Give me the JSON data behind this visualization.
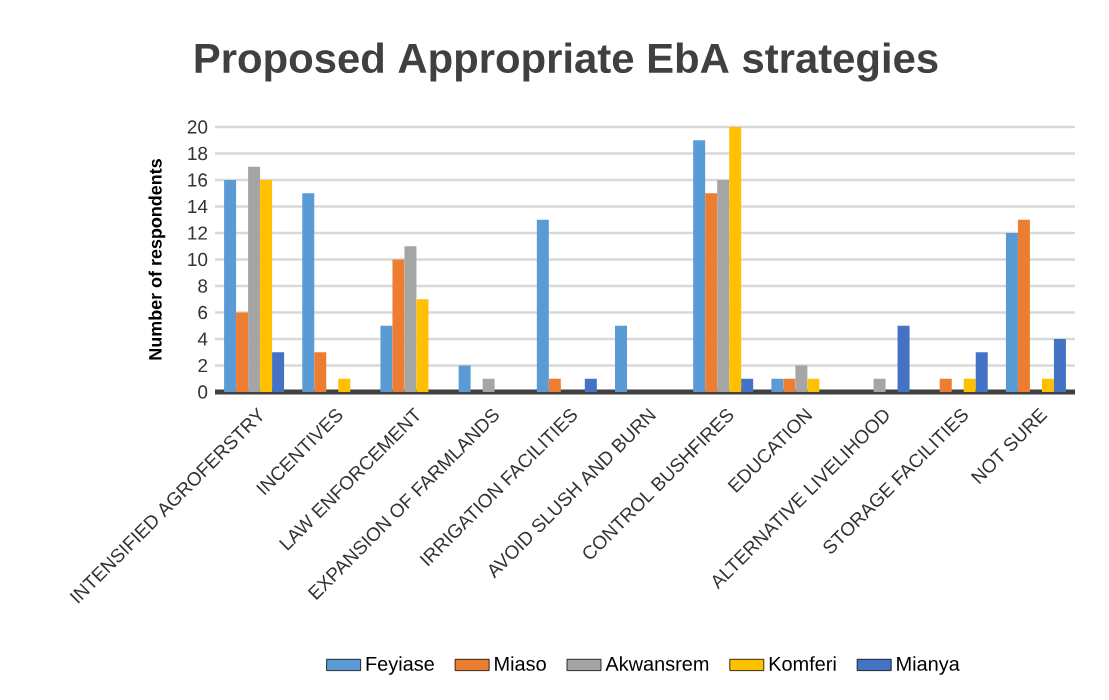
{
  "chart_data": {
    "type": "bar",
    "title": "Proposed Appropriate EbA strategies",
    "ylabel": "Number of respondents",
    "categories": [
      "INTENSIFIED AGROFERSTRY",
      "INCENTIVES",
      "LAW ENFORCEMENT",
      "EXPANSION OF FARMLANDS",
      "IRRIGATION FACILITIES",
      "AVOID SLUSH AND BURN",
      "CONTROL BUSHFIRES",
      "EDUCATION",
      "ALTERNATIVE LIVELIHOOD",
      "STORAGE FACILITIES",
      "NOT SURE"
    ],
    "series": [
      {
        "name": "Feyiase",
        "color": "#5b9bd5",
        "values": [
          16,
          15,
          5,
          2,
          13,
          5,
          19,
          1,
          0,
          0,
          12
        ]
      },
      {
        "name": "Miaso",
        "color": "#ed7d31",
        "values": [
          6,
          3,
          10,
          0,
          1,
          0,
          15,
          1,
          0,
          1,
          13
        ]
      },
      {
        "name": "Akwansrem",
        "color": "#a5a5a5",
        "values": [
          17,
          0,
          11,
          1,
          0,
          0,
          16,
          2,
          1,
          0,
          0
        ]
      },
      {
        "name": "Komferi",
        "color": "#ffc000",
        "values": [
          16,
          1,
          7,
          0,
          0,
          0,
          20,
          1,
          0,
          1,
          1
        ]
      },
      {
        "name": "Mianya",
        "color": "#4472c4",
        "values": [
          3,
          0,
          0,
          0,
          1,
          0,
          1,
          0,
          5,
          3,
          4
        ]
      }
    ],
    "ylim": [
      0,
      20
    ],
    "yticks": [
      0,
      2,
      4,
      6,
      8,
      10,
      12,
      14,
      16,
      18,
      20
    ],
    "grid": "y",
    "legend": "bottom"
  }
}
